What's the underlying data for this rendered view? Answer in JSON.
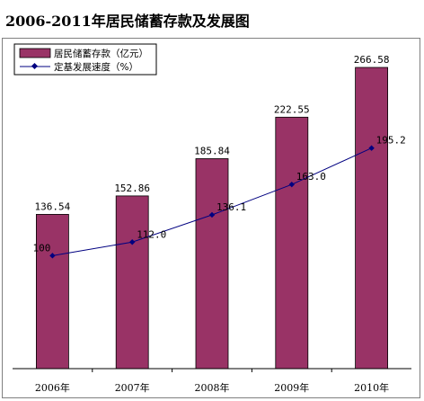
{
  "chart_data": {
    "type": "bar",
    "title": "2006-2011年居民储蓄存款及发展图",
    "categories": [
      "2006年",
      "2007年",
      "2008年",
      "2009年",
      "2010年"
    ],
    "series": [
      {
        "name": "居民储蓄存款（亿元）",
        "kind": "bar",
        "values": [
          136.54,
          152.86,
          185.84,
          222.55,
          266.58
        ],
        "value_labels": [
          "136.54",
          "152.86",
          "185.84",
          "222.55",
          "266.58"
        ],
        "color": "#993366"
      },
      {
        "name": "定基发展速度（%）",
        "kind": "line",
        "values": [
          100,
          112.0,
          136.1,
          163.0,
          195.2
        ],
        "value_labels": [
          "100",
          "112.0",
          "136.1",
          "163.0",
          "195.2"
        ],
        "color": "#000080"
      }
    ],
    "ylim": [
      0,
      300
    ],
    "y2lim": [
      0,
      300
    ],
    "legend": "top-left",
    "grid": false
  }
}
